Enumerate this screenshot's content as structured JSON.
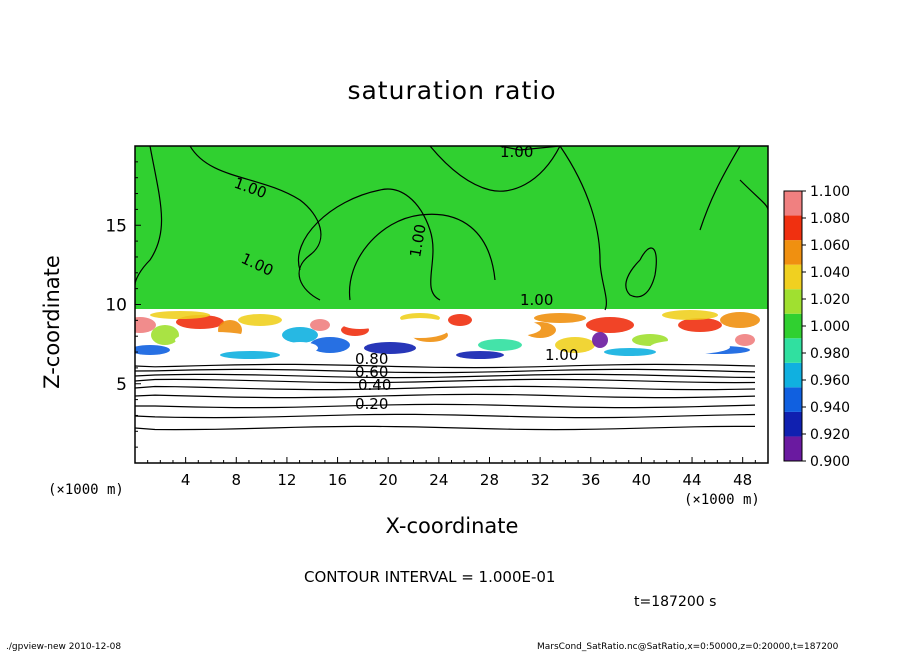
{
  "chart_data": {
    "type": "heatmap",
    "title": "saturation ratio",
    "xlabel": "X-coordinate",
    "ylabel": "Z-coordinate",
    "x_unit": "(×1000 m)",
    "xlim": [
      0,
      50
    ],
    "ylim": [
      0,
      20
    ],
    "x_ticks": [
      4,
      8,
      12,
      16,
      20,
      24,
      28,
      32,
      36,
      40,
      44,
      48
    ],
    "y_ticks": [
      5,
      10,
      15
    ],
    "colorbar": {
      "levels": [
        0.9,
        0.92,
        0.94,
        0.96,
        0.98,
        1.0,
        1.02,
        1.04,
        1.06,
        1.08,
        1.1
      ],
      "labels": [
        "0.900",
        "0.920",
        "0.940",
        "0.960",
        "0.980",
        "1.000",
        "1.020",
        "1.040",
        "1.060",
        "1.080",
        "1.100"
      ],
      "colors": [
        "#6a1aa0",
        "#1020b0",
        "#1060e0",
        "#10b0e0",
        "#30e0a0",
        "#30d030",
        "#a0e030",
        "#f0d020",
        "#f09010",
        "#f03010",
        "#f08080"
      ]
    },
    "contour_labels": [
      "1.00",
      "1.00",
      "1.00",
      "1.00",
      "1.00",
      "1.00",
      "0.80",
      "0.60",
      "0.40",
      "0.20"
    ],
    "contour_interval": "CONTOUR INTERVAL = 1.000E-01",
    "time": "t=187200 s"
  },
  "footer": {
    "left": "./gpview-new   2010-12-08",
    "right": "MarsCond_SatRatio.nc@SatRatio,x=0:50000,z=0:20000,t=187200"
  },
  "colors": {
    "background": "#ffffff",
    "saturated": "#30d030"
  }
}
